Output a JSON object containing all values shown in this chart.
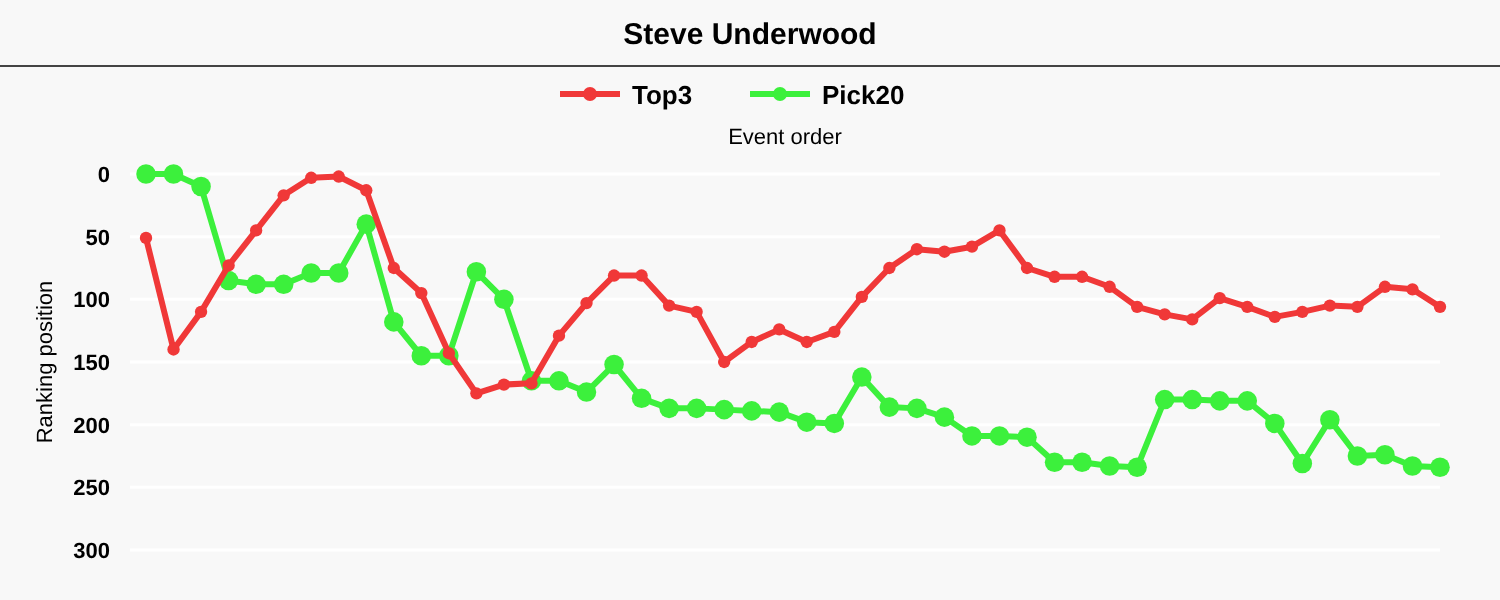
{
  "chart_data": {
    "type": "line",
    "title": "Steve Underwood",
    "xlabel": "Event order",
    "ylabel": "Ranking position",
    "categories": [
      null,
      null,
      null,
      null,
      null,
      null,
      null,
      null,
      null,
      null,
      null,
      null,
      null,
      null,
      null,
      null,
      null,
      null,
      null,
      null,
      null,
      null,
      null,
      null,
      null,
      null,
      null,
      null,
      null,
      null,
      null,
      null,
      null,
      null,
      null,
      null,
      null,
      null,
      null,
      null,
      null,
      null,
      null,
      null,
      null,
      null,
      null,
      null
    ],
    "series": [
      {
        "name": "Top3",
        "color": "#f03838",
        "values": [
          51,
          140,
          110,
          73,
          45,
          17,
          3,
          2,
          13,
          75,
          95,
          143,
          175,
          168,
          167,
          129,
          103,
          81,
          81,
          105,
          110,
          150,
          134,
          124,
          134,
          126,
          98,
          75,
          60,
          62,
          58,
          45,
          75,
          82,
          82,
          90,
          106,
          112,
          116,
          99,
          106,
          114,
          110,
          105,
          106,
          90,
          92,
          106
        ]
      },
      {
        "name": "Pick20",
        "color": "#3cf03c",
        "values": [
          0,
          0,
          10,
          85,
          88,
          88,
          79,
          79,
          40,
          118,
          145,
          145,
          78,
          100,
          165,
          165,
          174,
          152,
          179,
          187,
          187,
          188,
          189,
          190,
          198,
          199,
          162,
          186,
          187,
          194,
          209,
          209,
          210,
          230,
          230,
          233,
          234,
          180,
          180,
          181,
          181,
          199,
          231,
          196,
          225,
          224,
          233,
          234
        ]
      }
    ],
    "ylim": [
      300,
      0
    ],
    "yticks": [
      0,
      50,
      100,
      150,
      200,
      250,
      300
    ],
    "grid": "y",
    "legend": "top",
    "marker": "circle",
    "line_style": "solid",
    "tick_labels": "y"
  }
}
